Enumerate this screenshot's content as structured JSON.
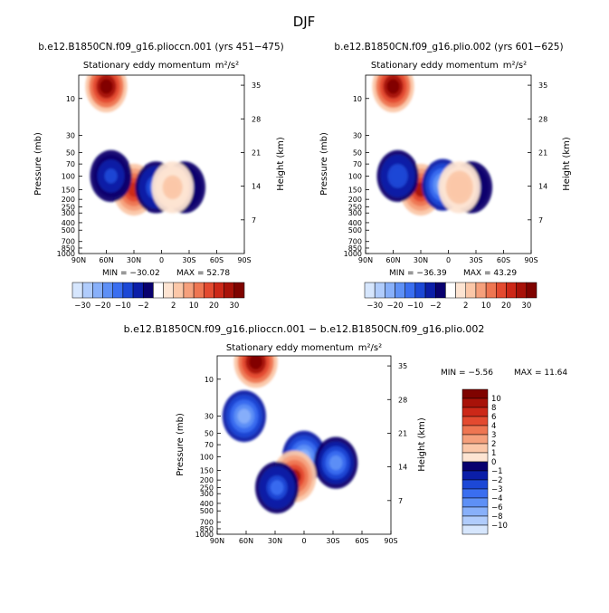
{
  "figure": {
    "season": "DJF",
    "diff_title": "b.e12.B1850CN.f09_g16.plioccn.001 − b.e12.B1850CN.f09_g16.plio.002"
  },
  "colors": {
    "low": [
      "#08006e",
      "#0b1ea8",
      "#1c48d6",
      "#3a6ef0",
      "#5e90f6",
      "#88b0fa",
      "#b0ccfc",
      "#d6e6fd"
    ],
    "high": [
      "#fde4d2",
      "#fbc7a8",
      "#f5a07c",
      "#ee7652",
      "#e34a30",
      "#cc2818",
      "#a81209",
      "#7f0300"
    ]
  },
  "chart_data": [
    {
      "type": "heatmap",
      "title": "b.e12.B1850CN.f09_g16.plioccn.001 (yrs 451−475)",
      "subtitle": "Stationary eddy momentum",
      "units": "m²/s²",
      "xlabel": "",
      "ylabel": "Pressure (mb)",
      "y2label": "Height (km)",
      "x_ticks": [
        "90N",
        "60N",
        "30N",
        "0",
        "30S",
        "60S",
        "90S"
      ],
      "y_ticks": [
        "10",
        "30",
        "50",
        "70",
        "100",
        "150",
        "200",
        "250",
        "300",
        "400",
        "500",
        "700",
        "850",
        "1000"
      ],
      "y2_ticks": [
        "35",
        "28",
        "21",
        "14",
        "7"
      ],
      "min": -30.02,
      "max": 52.78,
      "min_text": "MIN = −30.02",
      "max_text": "MAX = 52.78",
      "colorbar": {
        "orientation": "horizontal",
        "labels": [
          "−30",
          "−20",
          "−10",
          "−2",
          "2",
          "10",
          "20",
          "30"
        ]
      },
      "features": [
        {
          "lat": 60,
          "p": 7,
          "value": 52
        },
        {
          "lat": 30,
          "p": 150,
          "value": 35
        },
        {
          "lat": 55,
          "p": 100,
          "value": -14
        },
        {
          "lat": 6,
          "p": 140,
          "value": -20
        },
        {
          "lat": -25,
          "p": 140,
          "value": -10
        },
        {
          "lat": -12,
          "p": 140,
          "value": 10
        }
      ]
    },
    {
      "type": "heatmap",
      "title": "b.e12.B1850CN.f09_g16.plio.002 (yrs 601−625)",
      "subtitle": "Stationary eddy momentum",
      "units": "m²/s²",
      "xlabel": "",
      "ylabel": "Pressure (mb)",
      "y2label": "Height (km)",
      "x_ticks": [
        "90N",
        "60N",
        "30N",
        "0",
        "30S",
        "60S",
        "90S"
      ],
      "y_ticks": [
        "10",
        "30",
        "50",
        "70",
        "100",
        "150",
        "200",
        "250",
        "300",
        "400",
        "500",
        "700",
        "850",
        "1000"
      ],
      "y2_ticks": [
        "35",
        "28",
        "21",
        "14",
        "7"
      ],
      "min": -36.39,
      "max": 43.29,
      "min_text": "MIN = −36.39",
      "max_text": "MAX = 43.29",
      "colorbar": {
        "orientation": "horizontal",
        "labels": [
          "−30",
          "−20",
          "−10",
          "−2",
          "2",
          "10",
          "20",
          "30"
        ]
      },
      "features": [
        {
          "lat": 60,
          "p": 7,
          "value": 43
        },
        {
          "lat": 30,
          "p": 150,
          "value": 33
        },
        {
          "lat": 55,
          "p": 100,
          "value": -14
        },
        {
          "lat": 6,
          "p": 130,
          "value": -30
        },
        {
          "lat": -25,
          "p": 140,
          "value": -8
        },
        {
          "lat": -12,
          "p": 140,
          "value": 10
        }
      ]
    },
    {
      "type": "heatmap",
      "title": "",
      "subtitle": "Stationary eddy momentum",
      "units": "m²/s²",
      "xlabel": "",
      "ylabel": "Pressure (mb)",
      "y2label": "Height (km)",
      "x_ticks": [
        "90N",
        "60N",
        "30N",
        "0",
        "30S",
        "60S",
        "90S"
      ],
      "y_ticks": [
        "10",
        "30",
        "50",
        "70",
        "100",
        "150",
        "200",
        "250",
        "300",
        "400",
        "500",
        "700",
        "850",
        "1000"
      ],
      "y2_ticks": [
        "35",
        "28",
        "21",
        "14",
        "7"
      ],
      "min": -5.56,
      "max": 11.64,
      "min_text": "MIN = −5.56",
      "max_text": "MAX = 11.64",
      "colorbar": {
        "orientation": "vertical",
        "labels": [
          "10",
          "8",
          "6",
          "4",
          "3",
          "2",
          "1",
          "0",
          "−1",
          "−2",
          "−3",
          "−4",
          "−6",
          "−8",
          "−10"
        ]
      },
      "features": [
        {
          "lat": 50,
          "p": 6,
          "value": 8
        },
        {
          "lat": 62,
          "p": 30,
          "value": -5
        },
        {
          "lat": 0,
          "p": 100,
          "value": -5
        },
        {
          "lat": -33,
          "p": 120,
          "value": -4
        },
        {
          "lat": 10,
          "p": 180,
          "value": 6
        },
        {
          "lat": 28,
          "p": 250,
          "value": -3
        }
      ]
    }
  ]
}
